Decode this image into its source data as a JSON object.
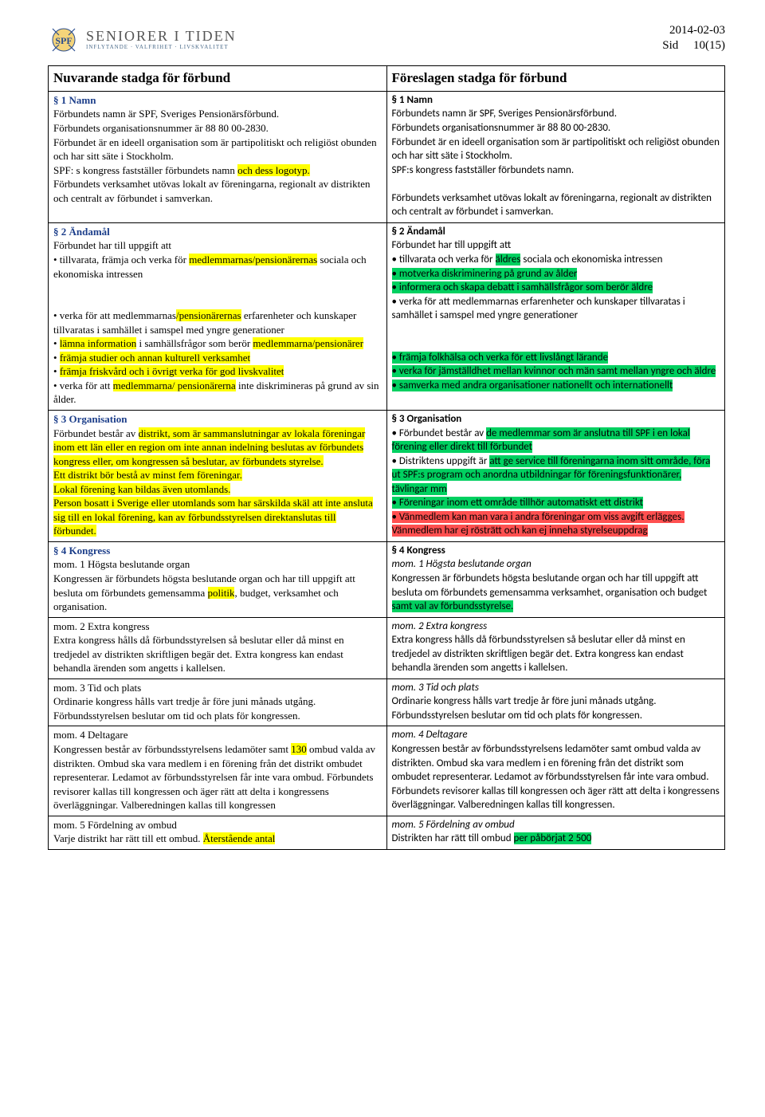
{
  "header": {
    "org_main": "SENIORER I TIDEN",
    "org_sub": "INFLYTANDE · VALFRIHET · LIVSKVALITET",
    "date": "2014-02-03",
    "sid_label": "Sid",
    "page_num": "10(15)"
  },
  "colors": {
    "section_head_left": "#1c3e8a",
    "hl_yellow": "#ffff00",
    "hl_green": "#00d060",
    "hl_red": "#ff5050"
  },
  "table": {
    "left_title": "Nuvarande stadga för förbund",
    "right_title": "Föreslagen stadga för förbund",
    "rows": [
      {
        "left": {
          "head": "§ 1 Namn",
          "segments": [
            {
              "t": "Förbundets namn är SPF, Sveriges Pensionärsförbund."
            },
            {
              "t": "\nFörbundets organisationsnummer är 88 80 00-2830."
            },
            {
              "t": "\nFörbundet är en ideell organisation som är partipolitiskt och religiöst obunden och har sitt säte i Stockholm."
            },
            {
              "t": "\nSPF: s kongress fastställer förbundets namn "
            },
            {
              "t": "och dess logotyp.",
              "c": "hl-yellow"
            },
            {
              "t": "\nFörbundets verksamhet utövas lokalt av föreningarna, regionalt av distrikten och centralt av förbundet i samverkan."
            }
          ]
        },
        "right": {
          "head": "§ 1 Namn",
          "segments": [
            {
              "t": "Förbundets namn är SPF, Sveriges Pensionärsförbund."
            },
            {
              "t": "\nFörbundets organisationsnummer är 88 80 00-2830."
            },
            {
              "t": "\nFörbundet är en ideell organisation som är partipolitiskt och religiöst obunden och har sitt säte i Stockholm."
            },
            {
              "t": "\nSPF:s kongress fastställer förbundets namn."
            },
            {
              "t": "\n\nFörbundets verksamhet utövas lokalt av föreningarna, regionalt av distrikten och centralt av förbundet i samverkan."
            }
          ]
        }
      },
      {
        "left": {
          "head": "§ 2 Ändamål",
          "segments": [
            {
              "t": "Förbundet har till uppgift att"
            },
            {
              "t": "\n• tillvarata, främja och verka för "
            },
            {
              "t": "medlemmarnas/pensionärernas",
              "c": "hl-yellow"
            },
            {
              "t": " sociala och ekonomiska intressen"
            },
            {
              "t": "\n\n\n• verka för att medlemmarnas"
            },
            {
              "t": "/pensionärernas",
              "c": "hl-yellow"
            },
            {
              "t": " erfarenheter och kunskaper tillvaratas i samhället i samspel med yngre generationer"
            },
            {
              "t": "\n• "
            },
            {
              "t": "lämna information",
              "c": "hl-yellow"
            },
            {
              "t": " i samhällsfrågor som berör "
            },
            {
              "t": "medlemmarna/pensionärer",
              "c": "hl-yellow"
            },
            {
              "t": "\n• "
            },
            {
              "t": "främja studier och annan kulturell verksamhet",
              "c": "hl-yellow"
            },
            {
              "t": "\n• "
            },
            {
              "t": "främja friskvård och i övrigt verka för god livskvalitet",
              "c": "hl-yellow"
            },
            {
              "t": "\n• verka för att "
            },
            {
              "t": "medlemmarna/ pensionärerna",
              "c": "hl-yellow"
            },
            {
              "t": " inte diskrimineras på grund av sin ålder."
            }
          ]
        },
        "right": {
          "head": "§ 2 Ändamål",
          "segments": [
            {
              "t": "Förbundet har till uppgift att"
            },
            {
              "t": "\n• tillvarata och verka för "
            },
            {
              "t": "äldres",
              "c": "hl-green"
            },
            {
              "t": " sociala och ekonomiska intressen"
            },
            {
              "t": "\n"
            },
            {
              "t": "• motverka diskriminering på grund av ålder",
              "c": "hl-green"
            },
            {
              "t": "\n"
            },
            {
              "t": "• informera och skapa debatt i samhällsfrågor som berör äldre",
              "c": "hl-green"
            },
            {
              "t": "\n• verka för att medlemmarnas erfarenheter och kunskaper tillvaratas i samhället i samspel med yngre generationer"
            },
            {
              "t": "\n\n\n"
            },
            {
              "t": "• främja folkhälsa och verka för ett livslångt lärande",
              "c": "hl-green"
            },
            {
              "t": "\n"
            },
            {
              "t": "• verka för jämställdhet mellan kvinnor och män samt mellan yngre och äldre",
              "c": "hl-green"
            },
            {
              "t": "\n"
            },
            {
              "t": "• samverka med andra organisationer nationellt och internationellt",
              "c": "hl-green"
            }
          ]
        }
      },
      {
        "left": {
          "head": "§ 3 Organisation",
          "segments": [
            {
              "t": "Förbundet består av "
            },
            {
              "t": "distrikt, som är sammanslutningar av lokala föreningar",
              "c": "hl-yellow"
            },
            {
              "t": " "
            },
            {
              "t": "inom ett län eller en region om inte annan indelning beslutas av förbundets kongress eller, om kongressen så beslutar, av förbundets styrelse.",
              "c": "hl-yellow"
            },
            {
              "t": "\n"
            },
            {
              "t": "Ett distrikt bör bestå av minst fem föreningar.",
              "c": "hl-yellow"
            },
            {
              "t": "\n"
            },
            {
              "t": "Lokal förening kan bildas även utomlands.",
              "c": "hl-yellow"
            },
            {
              "t": "\n"
            },
            {
              "t": "Person bosatt i Sverige eller utomlands som har särskilda skäl att inte ansluta sig till en lokal förening, kan av förbundsstyrelsen direktanslutas till förbundet.",
              "c": "hl-yellow"
            }
          ]
        },
        "right": {
          "head": "§ 3 Organisation",
          "segments": [
            {
              "t": "• Förbundet består av "
            },
            {
              "t": "de medlemmar som är anslutna till SPF i en lokal förening eller direkt till förbundet",
              "c": "hl-green"
            },
            {
              "t": "\n• Distriktens uppgift är "
            },
            {
              "t": "att ge service till föreningarna inom sitt område, föra ut SPF:s program och anordna utbildningar för föreningsfunktionärer, tävlingar mm",
              "c": "hl-green"
            },
            {
              "t": "\n"
            },
            {
              "t": "• Föreningar inom ett område tillhör automatiskt ett distrikt",
              "c": "hl-green"
            },
            {
              "t": "\n"
            },
            {
              "t": "• Vänmedlem kan man vara i andra föreningar om viss avgift erlägges.",
              "c": "hl-red"
            },
            {
              "t": " "
            },
            {
              "t": "Vänmedlem har ej rösträtt och kan ej inneha styrelseuppdrag",
              "c": "hl-red"
            }
          ]
        }
      },
      {
        "left": {
          "head": "§ 4 Kongress",
          "segments": [
            {
              "t": "mom. 1 Högsta beslutande organ"
            },
            {
              "t": "\nKongressen är förbundets högsta beslutande organ och har till uppgift att besluta om förbundets gemensamma "
            },
            {
              "t": "politik",
              "c": "hl-yellow"
            },
            {
              "t": ", budget, verksamhet och organisation."
            }
          ]
        },
        "right": {
          "head": "§ 4 Kongress",
          "segments": [
            {
              "t": "mom. 1 Högsta beslutande organ",
              "i": true
            },
            {
              "t": "\nKongressen är förbundets högsta beslutande organ och har till uppgift att besluta om förbundets gemensamma verksamhet, organisation och budget "
            },
            {
              "t": "samt val av förbundsstyrelse.",
              "c": "hl-green"
            }
          ]
        }
      },
      {
        "left": {
          "segments": [
            {
              "t": "mom. 2 Extra kongress"
            },
            {
              "t": "\nExtra kongress hålls då förbundsstyrelsen så beslutar eller då minst en tredjedel av distrikten skriftligen begär det. Extra kongress kan endast behandla ärenden som angetts i kallelsen."
            }
          ]
        },
        "right": {
          "segments": [
            {
              "t": " mom. 2 Extra kongress",
              "i": true
            },
            {
              "t": "\nExtra kongress hålls då förbundsstyrelsen så beslutar eller då minst en tredjedel av distrikten skriftligen begär det. Extra kongress kan endast behandla ärenden som angetts i kallelsen."
            }
          ]
        }
      },
      {
        "left": {
          "segments": [
            {
              "t": "mom. 3 Tid och plats"
            },
            {
              "t": "\nOrdinarie kongress hålls vart tredje år före juni månads utgång. Förbundsstyrelsen beslutar om tid och plats för kongressen."
            }
          ]
        },
        "right": {
          "segments": [
            {
              "t": "mom. 3 Tid och plats",
              "i": true
            },
            {
              "t": "\nOrdinarie kongress hålls vart tredje år före juni månads utgång. Förbundsstyrelsen beslutar om tid och plats för kongressen."
            }
          ]
        }
      },
      {
        "left": {
          "segments": [
            {
              "t": "mom. 4 Deltagare"
            },
            {
              "t": "\nKongressen består av förbundsstyrelsens ledamöter samt "
            },
            {
              "t": "130",
              "c": "hl-yellow"
            },
            {
              "t": " ombud valda av distrikten. Ombud ska vara medlem i en förening från det distrikt ombudet representerar. Ledamot av förbundsstyrelsen får inte vara ombud. Förbundets revisorer kallas till kongressen och äger rätt att delta i kongressens överläggningar. Valberedningen kallas till kongressen"
            }
          ]
        },
        "right": {
          "segments": [
            {
              "t": "mom. 4 Deltagare",
              "i": true
            },
            {
              "t": "\nKongressen består av förbundsstyrelsens ledamöter samt ombud valda av distrikten. Ombud ska vara medlem i en förening från det distrikt som ombudet representerar. Ledamot av förbundsstyrelsen får inte vara ombud. Förbundets revisorer kallas till kongressen och äger rätt att delta i kongressens överläggningar. Valberedningen kallas till kongressen."
            }
          ]
        }
      },
      {
        "left": {
          "segments": [
            {
              "t": "mom. 5 Fördelning av ombud"
            },
            {
              "t": "\nVarje distrikt har rätt till ett ombud. "
            },
            {
              "t": "Återstående antal",
              "c": "hl-yellow"
            }
          ]
        },
        "right": {
          "segments": [
            {
              "t": "mom. 5 Fördelning av ombud",
              "i": true
            },
            {
              "t": "\nDistrikten har rätt till ombud "
            },
            {
              "t": "per påbörjat 2 500",
              "c": "hl-green"
            }
          ]
        }
      }
    ]
  }
}
